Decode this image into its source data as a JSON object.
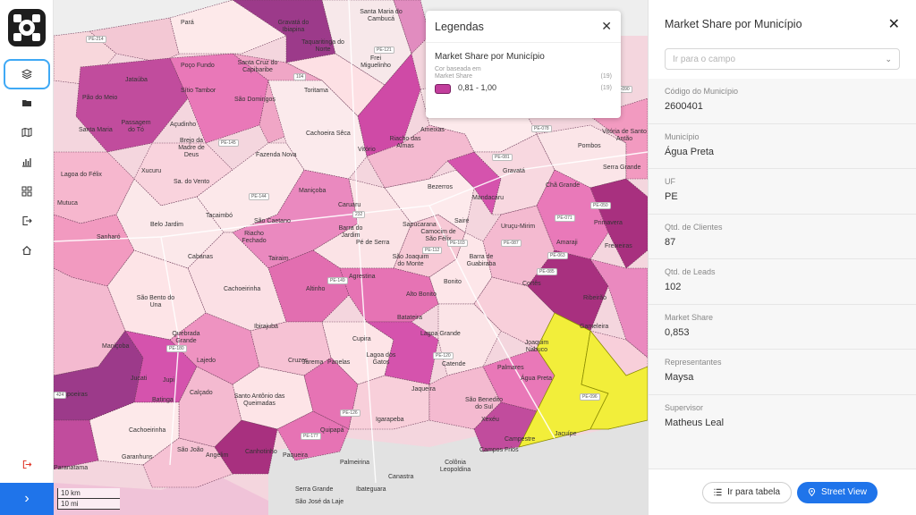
{
  "sidebar": {
    "items": [
      {
        "icon": "layers-icon"
      },
      {
        "icon": "folder-icon"
      },
      {
        "icon": "map-icon"
      },
      {
        "icon": "bar-chart-icon"
      },
      {
        "icon": "grid-icon"
      },
      {
        "icon": "export-icon"
      },
      {
        "icon": "home-icon"
      }
    ],
    "logout_icon": "logout-icon",
    "expand_label": "›"
  },
  "map": {
    "places": [
      "Pará",
      "Gravatá do Ibiapina",
      "Santa Maria do Cambucá",
      "Taquaritinga do Norte",
      "Poço Fundo",
      "Santa Cruz do Capibaribe",
      "Frei Miguelinho",
      "Jataúba",
      "Pão do Meio",
      "Toritama",
      "Sítio Tambor",
      "São Domingos",
      "Passagem do Tó",
      "Açudinho",
      "Brejo da Madre de Deus",
      "Santa Maria",
      "Riacho das Almas",
      "Vitório",
      "Cachoeira Sêca",
      "Fazenda Nova",
      "Xucuru",
      "Lagoa do Félix",
      "Mutuca",
      "Sa. do Vento",
      "Riacho Fechado",
      "Maniçoba",
      "São Caetano",
      "Tacaimbó",
      "Caruaru",
      "Belo Jardim",
      "Sanharó",
      "Cabanas",
      "Barra do Jardim",
      "Camocim de São Félix",
      "Sairé",
      "Gravatá",
      "Mandacaru",
      "Chã Grande",
      "Pombos",
      "Primavera",
      "Vitória de Santo Antão",
      "Serra Grande",
      "Bezerros",
      "Sapucarana",
      "Amaraji",
      "Freixeiras",
      "Tairaim",
      "Pé de Serra",
      "São Joaquim do Monte",
      "Barra de Guabiraba",
      "Uruçu-Mirim",
      "Ribeirão",
      "Cachoeirinha",
      "Altinho",
      "Agrestina",
      "Bonito",
      "Cortês",
      "São Bento do Una",
      "Alto Bonito",
      "Batateira",
      "Gameleira",
      "Maniçoba",
      "Quebrada Grande",
      "Lajedo",
      "Ibirajuba",
      "Cupira",
      "Lagoa dos Gatos",
      "Lagoa Grande",
      "Joaquim Nabuco",
      "Cruzes",
      "Jurema",
      "Panelas",
      "Catende",
      "Palmares",
      "Jucati",
      "Jupi",
      "Calçado",
      "Santo Antônio das Queimadas",
      "Jaqueira",
      "São Benedito do Sul",
      "Água Preta",
      "Capoeiras",
      "Batinga",
      "Igarapeba",
      "Xexéu",
      "Cachoeirinha",
      "Quipapá",
      "Campestre",
      "Jacuípe",
      "São João",
      "Angelim",
      "Canhotinho",
      "Paqueira",
      "Garanhuns",
      "Palmeirina",
      "Colônia Leopoldina",
      "Canastra",
      "Ibateguara",
      "Serra Grande",
      "São José da Laje",
      "Paranatama",
      "Campos Frios",
      "Ameixas"
    ],
    "roads": [
      "PE-214",
      "104",
      "PE-121",
      "PE-145",
      "PE-144",
      "232",
      "PE-081",
      "PE-078",
      "PE-050",
      "PE-103",
      "PE-071",
      "PE-063",
      "PE-085",
      "PE-087",
      "PE-149",
      "PE-120",
      "PE-126",
      "PE-177",
      "PE-096",
      "PE-180",
      "424",
      "PE-112",
      "PE-090"
    ],
    "scale": [
      "10 km",
      "10 mi"
    ]
  },
  "legend": {
    "title": "Legendas",
    "layer_title": "Market Share por Município",
    "sub1": "Cor baseada em",
    "sub2": "Market Share",
    "count1": "(19)",
    "range": "0,81 - 1,00",
    "count2": "(19)",
    "swatch_color": "#c23e9c"
  },
  "panel": {
    "title": "Market Share por Município",
    "select_placeholder": "Ir para o campo",
    "fields": [
      {
        "label": "Código do Município",
        "value": "2600401"
      },
      {
        "label": "Município",
        "value": "Água Preta"
      },
      {
        "label": "UF",
        "value": "PE"
      },
      {
        "label": "Qtd. de Clientes",
        "value": "87"
      },
      {
        "label": "Qtd. de Leads",
        "value": "102"
      },
      {
        "label": "Market Share",
        "value": "0,853"
      },
      {
        "label": "Representantes",
        "value": "Maysa"
      },
      {
        "label": "Supervisor",
        "value": "Matheus Leal"
      }
    ],
    "table_button": "Ir para tabela",
    "street_button": "Street View"
  },
  "colors": {
    "accent": "#1f74ea",
    "selected_municipality": "#f2ee3a",
    "highest_share": "#c23e9c"
  }
}
